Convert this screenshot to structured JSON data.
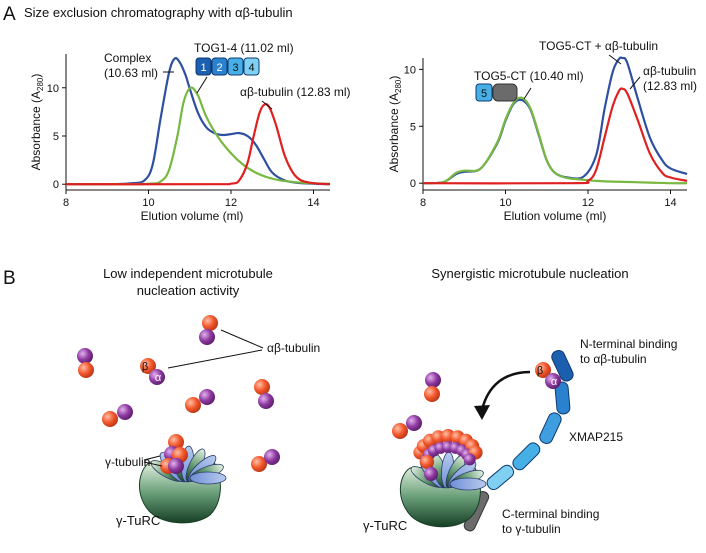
{
  "figure": {
    "panel_a_letter": "A",
    "panel_a_title": "Size exclusion chromatography with αβ-tubulin",
    "panel_b_letter": "B"
  },
  "colors": {
    "blue": "#2f4fa1",
    "green": "#77b840",
    "red": "#e02020",
    "tog_dark": "#1b5fae",
    "tog_mid": "#2a82cf",
    "tog_light": "#46b0e6",
    "tog_lightest": "#7fd0f2",
    "grey": "#6b6b6b",
    "alpha": "#8e3aa0",
    "beta": "#f2562b"
  },
  "chart_data": [
    {
      "type": "line",
      "xlabel": "Elution volume (ml)",
      "ylabel": "Absorbance (A280)",
      "ylabel_main": "Absorbance (A",
      "ylabel_sub": "280",
      "ylabel_close": ")",
      "xlim": [
        8,
        14.4
      ],
      "ylim": [
        -0.6,
        13.5
      ],
      "xticks": [
        8,
        10,
        12,
        14
      ],
      "yticks": [
        0,
        5,
        10
      ],
      "series": [
        {
          "name": "Complex",
          "color": "blue",
          "x": [
            8.0,
            9.0,
            9.6,
            9.9,
            10.1,
            10.3,
            10.5,
            10.63,
            10.75,
            10.9,
            11.0,
            11.2,
            11.4,
            11.6,
            11.8,
            12.0,
            12.2,
            12.4,
            12.6,
            12.8,
            13.0,
            13.3,
            13.6,
            14.0,
            14.4
          ],
          "y": [
            0.0,
            0.0,
            0.1,
            0.4,
            2.0,
            7.0,
            11.6,
            13.0,
            12.7,
            11.3,
            9.9,
            7.4,
            5.9,
            5.3,
            5.1,
            5.2,
            5.3,
            5.0,
            4.1,
            2.6,
            1.2,
            0.4,
            0.15,
            0.05,
            0.0
          ]
        },
        {
          "name": "TOG1-4",
          "color": "green",
          "x": [
            8.0,
            9.0,
            10.0,
            10.3,
            10.5,
            10.7,
            10.85,
            11.02,
            11.2,
            11.4,
            11.7,
            12.0,
            12.3,
            12.6,
            12.9,
            13.2,
            13.6,
            14.0,
            14.4
          ],
          "y": [
            0.0,
            0.0,
            0.05,
            0.3,
            1.5,
            5.0,
            8.5,
            10.0,
            9.2,
            7.0,
            4.8,
            3.2,
            2.0,
            1.2,
            0.7,
            0.4,
            0.2,
            0.1,
            0.05
          ]
        },
        {
          "name": "αβ-tubulin",
          "color": "red",
          "x": [
            8.0,
            11.5,
            12.0,
            12.2,
            12.4,
            12.55,
            12.7,
            12.83,
            12.95,
            13.1,
            13.3,
            13.5,
            13.7,
            14.0,
            14.4
          ],
          "y": [
            0.0,
            0.0,
            0.05,
            0.4,
            2.2,
            5.0,
            7.5,
            8.3,
            7.8,
            6.0,
            3.0,
            1.2,
            0.4,
            0.1,
            0.0
          ]
        }
      ],
      "annotations": [
        {
          "line1": "Complex",
          "line2": "(10.63 ml)"
        },
        {
          "text": "TOG1-4 (11.02 ml)",
          "boxes": [
            "1",
            "2",
            "3",
            "4"
          ]
        },
        {
          "text": "αβ-tubulin (12.83 ml)"
        }
      ]
    },
    {
      "type": "line",
      "xlabel": "Elution volume (ml)",
      "ylabel": "Absorbance (A280)",
      "ylabel_main": "Absorbance (A",
      "ylabel_sub": "280",
      "ylabel_close": ")",
      "xlim": [
        8,
        14.4
      ],
      "ylim": [
        -0.6,
        11.0
      ],
      "xticks": [
        8,
        10,
        12,
        14
      ],
      "yticks": [
        0,
        5,
        10
      ],
      "series": [
        {
          "name": "TOG5-CT + αβ-tubulin",
          "color": "blue",
          "x": [
            8.0,
            8.5,
            8.8,
            9.0,
            9.4,
            9.8,
            10.0,
            10.2,
            10.4,
            10.6,
            10.8,
            11.0,
            11.2,
            11.5,
            11.9,
            12.2,
            12.4,
            12.6,
            12.75,
            12.83,
            12.95,
            13.2,
            13.5,
            13.8,
            14.0,
            14.4
          ],
          "y": [
            0.0,
            0.1,
            0.8,
            1.0,
            1.3,
            3.5,
            5.5,
            7.0,
            7.3,
            6.5,
            4.3,
            2.0,
            0.9,
            0.5,
            0.6,
            2.5,
            6.5,
            9.8,
            10.9,
            11.0,
            10.6,
            7.5,
            4.0,
            2.0,
            1.3,
            0.8
          ]
        },
        {
          "name": "TOG5-CT",
          "color": "green",
          "x": [
            8.0,
            8.5,
            8.8,
            9.0,
            9.4,
            9.8,
            10.0,
            10.2,
            10.4,
            10.6,
            10.8,
            11.0,
            11.2,
            11.5,
            11.9,
            12.2,
            12.5,
            13.0,
            13.5,
            14.0,
            14.4
          ],
          "y": [
            0.0,
            0.1,
            0.9,
            1.1,
            1.3,
            3.6,
            5.6,
            7.1,
            7.5,
            6.6,
            4.4,
            2.0,
            0.9,
            0.45,
            0.3,
            0.2,
            0.15,
            0.1,
            0.05,
            0.0,
            0.0
          ]
        },
        {
          "name": "αβ-tubulin",
          "color": "red",
          "x": [
            8.0,
            11.6,
            12.0,
            12.2,
            12.4,
            12.6,
            12.75,
            12.83,
            12.95,
            13.2,
            13.5,
            13.8,
            14.0,
            14.4
          ],
          "y": [
            0.0,
            0.0,
            0.2,
            1.2,
            4.0,
            6.8,
            8.1,
            8.3,
            7.9,
            5.6,
            2.6,
            0.9,
            0.5,
            0.2
          ]
        }
      ],
      "annotations": [
        {
          "text": "TOG5-CT (10.40 ml)",
          "boxes": [
            "5",
            ""
          ]
        },
        {
          "text": "TOG5-CT + αβ-tubulin"
        },
        {
          "line1": "αβ-tubulin",
          "line2": "(12.83 ml)"
        }
      ]
    }
  ],
  "panel_b": {
    "left_title_line1": "Low independent microtubule",
    "left_title_line2": "nucleation activity",
    "right_title": "Synergistic microtubule nucleation",
    "ab_tubulin_label": "αβ-tubulin",
    "beta_symbol": "β",
    "alpha_symbol": "α",
    "gamma_tubulin_label": "γ-tubulin",
    "gamma_turc_left": "γ-TuRC",
    "gamma_turc_right": "γ-TuRC",
    "n_term_line1": "N-terminal binding",
    "n_term_line2": "to αβ-tubulin",
    "xmap_label": "XMAP215",
    "c_term_line1": "C-terminal binding",
    "c_term_line2": "to γ-tubulin"
  }
}
